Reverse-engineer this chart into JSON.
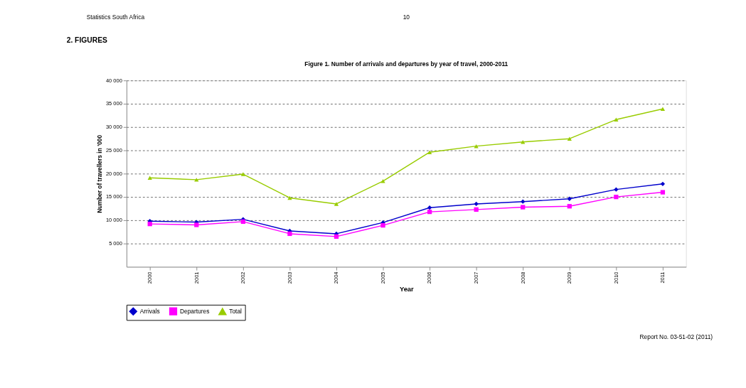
{
  "chart_data": {
    "type": "line",
    "title": "Figure 1. Number of arrivals and departures by year of travel, 2000-2011",
    "xlabel": "Year",
    "ylabel": "Number of travellers in '000",
    "annotations": [
      "Statistics South Africa",
      "10",
      "2.      FIGURES",
      "Report No. 03-51-02 (2011)"
    ],
    "categories": [
      "2000",
      "2001",
      "2002",
      "2003",
      "2004",
      "2005",
      "2006",
      "2007",
      "2008",
      "2009",
      "2010",
      "2011"
    ],
    "series": [
      {
        "name": "Arrivals",
        "color": "#0000cc",
        "marker": "diamond",
        "values": [
          9800,
          9600,
          10200,
          7700,
          7100,
          9500,
          12700,
          13500,
          14000,
          14600,
          16600,
          17800
        ]
      },
      {
        "name": "Departures",
        "color": "#ff00ff",
        "marker": "square",
        "values": [
          9200,
          9000,
          9700,
          7100,
          6500,
          8900,
          11800,
          12300,
          12800,
          13000,
          15000,
          16000
        ]
      },
      {
        "name": "Total",
        "color": "#99cc00",
        "marker": "triangle",
        "values": [
          19100,
          18700,
          19900,
          14800,
          13500,
          18400,
          24600,
          25900,
          26800,
          27500,
          31600,
          33900
        ]
      }
    ],
    "ylim": [
      0,
      40000
    ],
    "yticks": [
      {
        "value": 5000,
        "label": "5 000"
      },
      {
        "value": 10000,
        "label": "10 000"
      },
      {
        "value": 15000,
        "label": "15 000"
      },
      {
        "value": 20000,
        "label": "20 000"
      },
      {
        "value": 25000,
        "label": "25 000"
      },
      {
        "value": 30000,
        "label": "30 000"
      },
      {
        "value": 35000,
        "label": "35 000"
      },
      {
        "value": 40000,
        "label": "40 000"
      }
    ],
    "grid": "y",
    "legend": "bottom",
    "line_style": "solid"
  }
}
